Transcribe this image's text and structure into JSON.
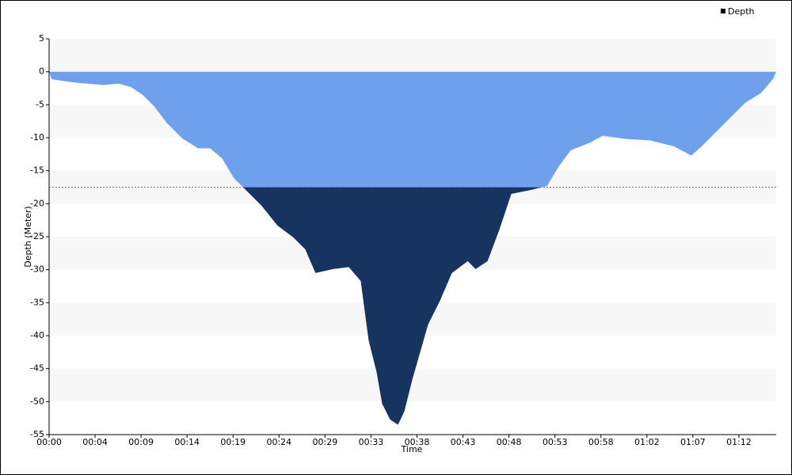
{
  "chart_data": {
    "type": "area",
    "y_label": "Depth (Meter)",
    "x_label": "Time",
    "x": [
      0,
      15,
      90,
      190,
      340,
      440,
      515,
      590,
      665,
      740,
      840,
      940,
      1015,
      1090,
      1165,
      1240,
      1340,
      1440,
      1540,
      1615,
      1680,
      1790,
      1890,
      1965,
      2015,
      2065,
      2100,
      2150,
      2200,
      2240,
      2290,
      2390,
      2465,
      2540,
      2640,
      2690,
      2765,
      2840,
      2915,
      3040,
      3140,
      3215,
      3290,
      3415,
      3490,
      3640,
      3790,
      3940,
      4050,
      4115,
      4240,
      4390,
      4490,
      4565,
      4585
    ],
    "series": [
      {
        "name": "Depth",
        "color": "#17335f",
        "light_color": "#6fa0ec",
        "values": [
          0,
          -1.1,
          -1.4,
          -1.7,
          -2,
          -1.8,
          -2.3,
          -3.5,
          -5.3,
          -7.7,
          -10.1,
          -11.6,
          -11.6,
          -13.1,
          -16.1,
          -17.9,
          -20.3,
          -23.3,
          -25.1,
          -26.9,
          -30.5,
          -29.9,
          -29.6,
          -31.7,
          -40.7,
          -45.5,
          -50.3,
          -52.7,
          -53.5,
          -51.5,
          -46.7,
          -38.3,
          -34.7,
          -30.5,
          -28.7,
          -29.9,
          -28.7,
          -23.9,
          -18.5,
          -17.9,
          -17.3,
          -14.3,
          -11.9,
          -10.7,
          -9.7,
          -10.2,
          -10.4,
          -11.3,
          -12.7,
          -11.3,
          -8.3,
          -4.7,
          -3.2,
          -1.1,
          0
        ]
      }
    ],
    "threshold": -17.5,
    "xlim": [
      0,
      4585
    ],
    "ylim": [
      -55,
      5
    ],
    "yticks": [
      5,
      0,
      -5,
      -10,
      -15,
      -20,
      -25,
      -30,
      -35,
      -40,
      -45,
      -50,
      -55
    ],
    "xticks": [
      {
        "value": 0,
        "label": "00:00"
      },
      {
        "value": 290,
        "label": "00:04"
      },
      {
        "value": 580,
        "label": "00:09"
      },
      {
        "value": 870,
        "label": "00:14"
      },
      {
        "value": 1160,
        "label": "00:19"
      },
      {
        "value": 1450,
        "label": "00:24"
      },
      {
        "value": 1740,
        "label": "00:29"
      },
      {
        "value": 2030,
        "label": "00:33"
      },
      {
        "value": 2320,
        "label": "00:38"
      },
      {
        "value": 2610,
        "label": "00:43"
      },
      {
        "value": 2900,
        "label": "00:48"
      },
      {
        "value": 3190,
        "label": "00:53"
      },
      {
        "value": 3480,
        "label": "00:58"
      },
      {
        "value": 3770,
        "label": "01:02"
      },
      {
        "value": 4060,
        "label": "01:07"
      },
      {
        "value": 4350,
        "label": "01:12"
      }
    ],
    "legend": "top-right",
    "grid": true
  }
}
